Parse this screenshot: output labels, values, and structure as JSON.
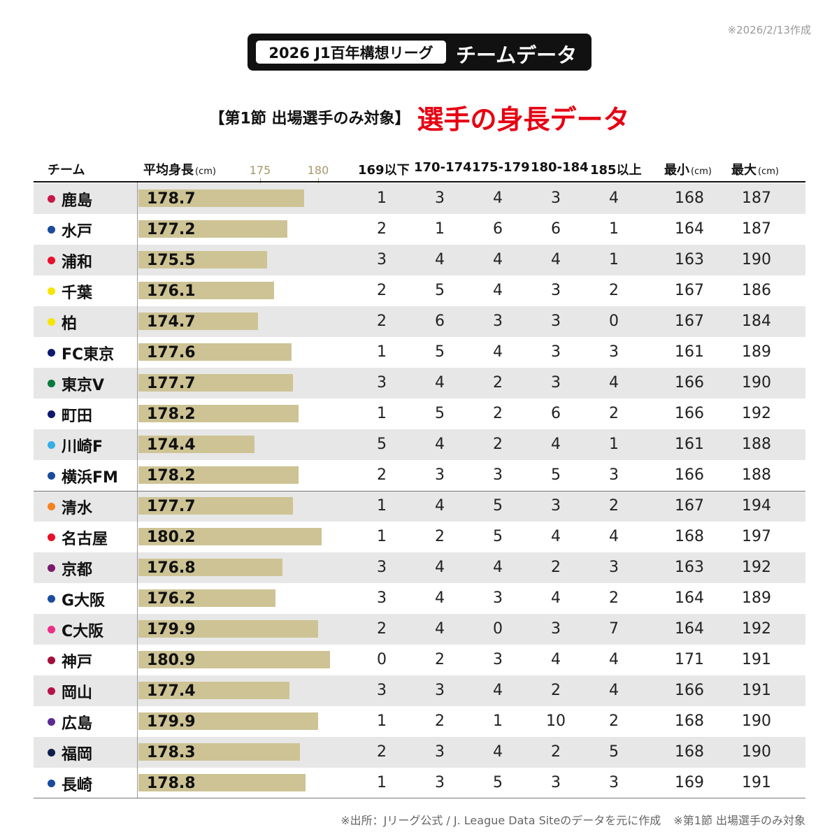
{
  "created_note": "※2026/2/13作成",
  "header": {
    "pill": "2026 J1百年構想リーグ",
    "title": "チームデータ"
  },
  "subtitle": {
    "left": "【第1節 出場選手のみ対象】",
    "right": "選手の身長データ"
  },
  "columns": {
    "team": "チーム",
    "avg": "平均身長",
    "avg_unit": "(cm)",
    "ticks": [
      "175",
      "180"
    ],
    "b1": "169以下",
    "b2": "170-174",
    "b3": "175-179",
    "b4": "180-184",
    "b5": "185以上",
    "min": "最小",
    "max": "最大",
    "min_unit": "(cm)",
    "max_unit": "(cm)"
  },
  "colors": {
    "bar": "#cdc394",
    "accent_red": "#e60012",
    "tick": "#a8976a",
    "row_alt": "#e7e7e7"
  },
  "chart_data": {
    "type": "table",
    "bar_axis_ticks": [
      175,
      180
    ],
    "rows": [
      {
        "team": "鹿島",
        "color": "#c8174b",
        "avg": "178.7",
        "b1": "1",
        "b2": "3",
        "b3": "4",
        "b4": "3",
        "b5": "4",
        "min": "168",
        "max": "187"
      },
      {
        "team": "水戸",
        "color": "#1a4b9c",
        "avg": "177.2",
        "b1": "2",
        "b2": "1",
        "b3": "6",
        "b4": "6",
        "b5": "1",
        "min": "164",
        "max": "187"
      },
      {
        "team": "浦和",
        "color": "#e8102b",
        "avg": "175.5",
        "b1": "3",
        "b2": "4",
        "b3": "4",
        "b4": "4",
        "b5": "1",
        "min": "163",
        "max": "190"
      },
      {
        "team": "千葉",
        "color": "#f7e400",
        "avg": "176.1",
        "b1": "2",
        "b2": "5",
        "b3": "4",
        "b4": "3",
        "b5": "2",
        "min": "167",
        "max": "186"
      },
      {
        "team": "柏",
        "color": "#f7e400",
        "avg": "174.7",
        "b1": "2",
        "b2": "6",
        "b3": "3",
        "b4": "3",
        "b5": "0",
        "min": "167",
        "max": "184"
      },
      {
        "team": "FC東京",
        "color": "#0d1a6e",
        "avg": "177.6",
        "b1": "1",
        "b2": "5",
        "b3": "4",
        "b4": "3",
        "b5": "3",
        "min": "161",
        "max": "189"
      },
      {
        "team": "東京V",
        "color": "#0a7a3d",
        "avg": "177.7",
        "b1": "3",
        "b2": "4",
        "b3": "2",
        "b4": "3",
        "b5": "4",
        "min": "166",
        "max": "190"
      },
      {
        "team": "町田",
        "color": "#0d1a6e",
        "avg": "178.2",
        "b1": "1",
        "b2": "5",
        "b3": "2",
        "b4": "6",
        "b5": "2",
        "min": "166",
        "max": "192"
      },
      {
        "team": "川崎F",
        "color": "#35aee8",
        "avg": "174.4",
        "b1": "5",
        "b2": "4",
        "b3": "2",
        "b4": "4",
        "b5": "1",
        "min": "161",
        "max": "188"
      },
      {
        "team": "横浜FM",
        "color": "#1a4b9c",
        "avg": "178.2",
        "b1": "2",
        "b2": "3",
        "b3": "3",
        "b4": "5",
        "b5": "3",
        "min": "166",
        "max": "188"
      },
      {
        "team": "清水",
        "color": "#f58220",
        "avg": "177.7",
        "b1": "1",
        "b2": "4",
        "b3": "5",
        "b4": "3",
        "b5": "2",
        "min": "167",
        "max": "194"
      },
      {
        "team": "名古屋",
        "color": "#e8102b",
        "avg": "180.2",
        "b1": "1",
        "b2": "2",
        "b3": "5",
        "b4": "4",
        "b5": "4",
        "min": "168",
        "max": "197"
      },
      {
        "team": "京都",
        "color": "#7a1a6e",
        "avg": "176.8",
        "b1": "3",
        "b2": "4",
        "b3": "4",
        "b4": "2",
        "b5": "3",
        "min": "163",
        "max": "192"
      },
      {
        "team": "G大阪",
        "color": "#1a4b9c",
        "avg": "176.2",
        "b1": "3",
        "b2": "4",
        "b3": "3",
        "b4": "4",
        "b5": "2",
        "min": "164",
        "max": "189"
      },
      {
        "team": "C大阪",
        "color": "#ec2f86",
        "avg": "179.9",
        "b1": "2",
        "b2": "4",
        "b3": "0",
        "b4": "3",
        "b5": "7",
        "min": "164",
        "max": "192"
      },
      {
        "team": "神戸",
        "color": "#a3103b",
        "avg": "180.9",
        "b1": "0",
        "b2": "2",
        "b3": "3",
        "b4": "4",
        "b5": "4",
        "min": "171",
        "max": "191"
      },
      {
        "team": "岡山",
        "color": "#b5124a",
        "avg": "177.4",
        "b1": "3",
        "b2": "3",
        "b3": "4",
        "b4": "2",
        "b5": "4",
        "min": "166",
        "max": "191"
      },
      {
        "team": "広島",
        "color": "#5b2c91",
        "avg": "179.9",
        "b1": "1",
        "b2": "2",
        "b3": "1",
        "b4": "10",
        "b5": "2",
        "min": "168",
        "max": "190"
      },
      {
        "team": "福岡",
        "color": "#0d1f4e",
        "avg": "178.3",
        "b1": "2",
        "b2": "3",
        "b3": "4",
        "b4": "2",
        "b5": "5",
        "min": "168",
        "max": "190"
      },
      {
        "team": "長崎",
        "color": "#1a4b9c",
        "avg": "178.8",
        "b1": "1",
        "b2": "3",
        "b3": "5",
        "b4": "3",
        "b5": "3",
        "min": "169",
        "max": "191"
      }
    ]
  },
  "footer": {
    "source": "※出所：Jリーグ公式 / J. League Data Siteのデータを元に作成",
    "note": "※第1節 出場選手のみ対象"
  }
}
